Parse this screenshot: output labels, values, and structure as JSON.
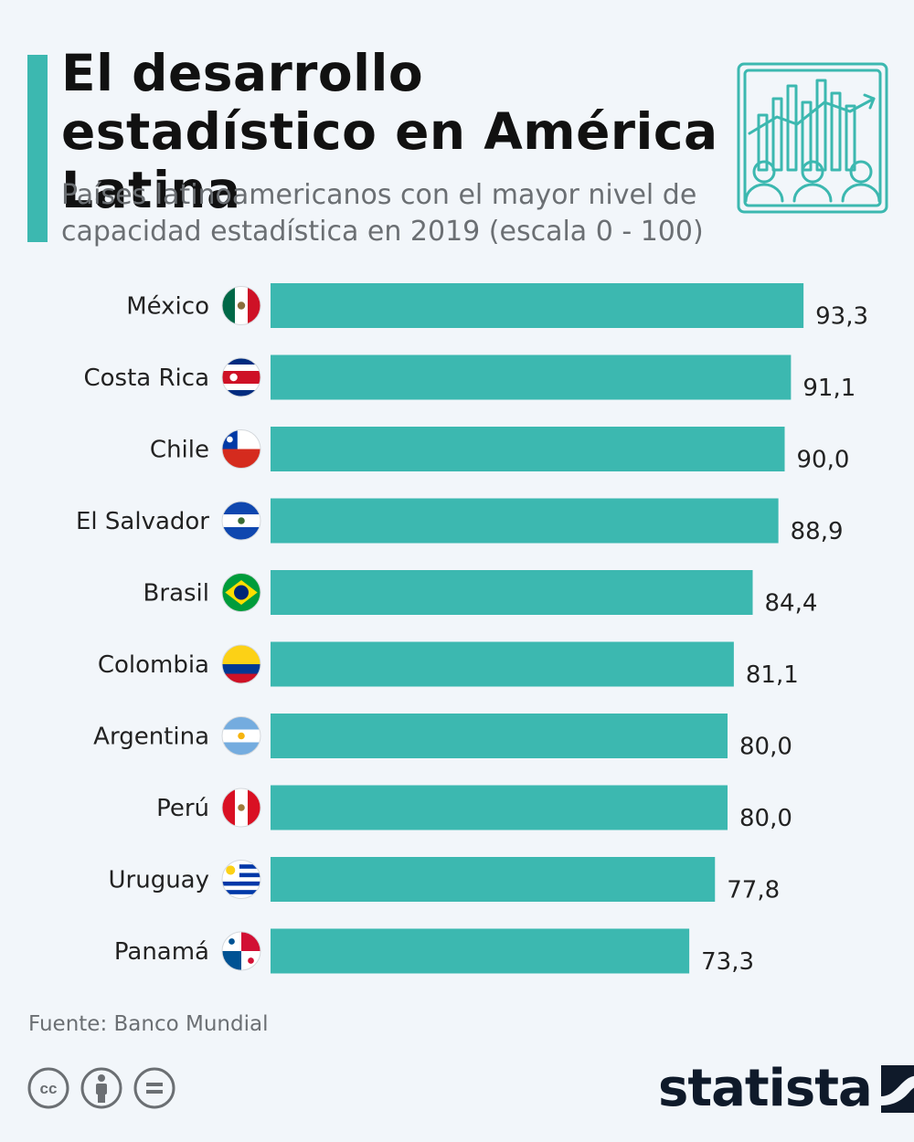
{
  "header": {
    "title": "El desarrollo estadístico en América Latina",
    "subtitle": "Países latinoamericanos con el mayor nivel de capacidad estadística en 2019 (escala 0 - 100)",
    "icon": "statistics-people-icon"
  },
  "chart_data": {
    "type": "bar",
    "orientation": "horizontal",
    "title": "El desarrollo estadístico en América Latina",
    "xlim": [
      0,
      100
    ],
    "categories": [
      "México",
      "Costa Rica",
      "Chile",
      "El Salvador",
      "Brasil",
      "Colombia",
      "Argentina",
      "Perú",
      "Uruguay",
      "Panamá"
    ],
    "values": [
      93.3,
      91.1,
      90.0,
      88.9,
      84.4,
      81.1,
      80.0,
      80.0,
      77.8,
      73.3
    ],
    "value_labels": [
      "93,3",
      "91,1",
      "90,0",
      "88,9",
      "84,4",
      "81,1",
      "80,0",
      "80,0",
      "77,8",
      "73,3"
    ],
    "flags": [
      "mexico",
      "costa-rica",
      "chile",
      "el-salvador",
      "brasil",
      "colombia",
      "argentina",
      "peru",
      "uruguay",
      "panama"
    ],
    "bar_color": "#3cb8b0"
  },
  "footer": {
    "source": "Fuente: Banco Mundial",
    "license_icons": [
      "cc-icon",
      "attribution-icon",
      "no-derivatives-icon"
    ],
    "logo": "statista"
  },
  "colors": {
    "accent": "#3cb8b0",
    "background": "#f2f6fa",
    "logo": "#0f1a2a"
  }
}
